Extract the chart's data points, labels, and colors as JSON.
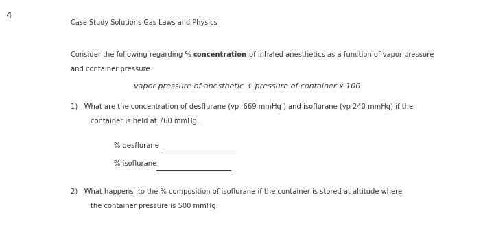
{
  "page_number": "4",
  "title": "Case Study Solutions Gas Laws and Physics",
  "formula": "vapor pressure of anesthetic + pressure of container x 100",
  "bg_color": "#ffffff",
  "text_color": "#3a3a3a",
  "font_size_title": 7.0,
  "font_size_body": 7.2,
  "font_size_page": 10,
  "font_size_formula": 8.0
}
